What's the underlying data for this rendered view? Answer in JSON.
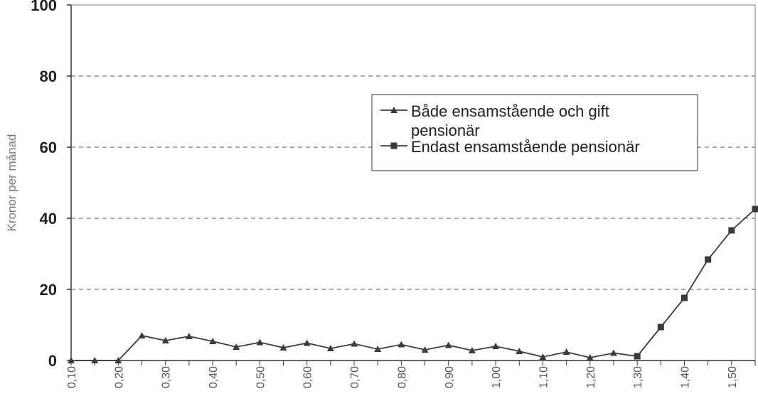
{
  "chart_data": {
    "type": "line",
    "ylabel": "Kronor per månad",
    "ylim": [
      0,
      100
    ],
    "y_ticks": [
      "0",
      "20",
      "40",
      "60",
      "80",
      "100"
    ],
    "x": [
      0.1,
      0.15,
      0.2,
      0.25,
      0.3,
      0.35,
      0.4,
      0.45,
      0.5,
      0.55,
      0.6,
      0.65,
      0.7,
      0.75,
      0.8,
      0.85,
      0.9,
      0.95,
      1.0,
      1.05,
      1.1,
      1.15,
      1.2,
      1.25,
      1.3,
      1.35,
      1.4,
      1.45,
      1.5,
      1.55
    ],
    "x_tick_labels": [
      "0,10",
      "0,20",
      "0,30",
      "0,40",
      "0,50",
      "0,60",
      "0,70",
      "0,80",
      "0,90",
      "1,00",
      "1,10",
      "1,20",
      "1,30",
      "1,40",
      "1,50"
    ],
    "x_tick_values": [
      0.1,
      0.2,
      0.3,
      0.4,
      0.5,
      0.6,
      0.7,
      0.8,
      0.9,
      1.0,
      1.1,
      1.2,
      1.3,
      1.4,
      1.5
    ],
    "grid": "horizontal dashed",
    "legend_position": "top-right",
    "series": [
      {
        "name": "Både ensamstående och gift pensionär",
        "marker": "triangle",
        "values": [
          0,
          0,
          0,
          7.0,
          5.6,
          6.8,
          5.4,
          3.8,
          5.1,
          3.6,
          4.9,
          3.4,
          4.7,
          3.2,
          4.5,
          3.0,
          4.3,
          2.8,
          4.0,
          2.6,
          1.0,
          2.4,
          0.8,
          2.1,
          1.2,
          null,
          null,
          null,
          null,
          null
        ]
      },
      {
        "name": "Endast ensamstående pensionär",
        "marker": "square",
        "values": [
          null,
          null,
          null,
          null,
          null,
          null,
          null,
          null,
          null,
          null,
          null,
          null,
          null,
          null,
          null,
          null,
          null,
          null,
          null,
          null,
          null,
          null,
          null,
          null,
          1.2,
          9.4,
          17.6,
          28.4,
          36.6,
          42.6
        ]
      }
    ]
  },
  "colors": {
    "line": "#3a3a3a",
    "grid": "#555555",
    "axis": "#333333"
  }
}
